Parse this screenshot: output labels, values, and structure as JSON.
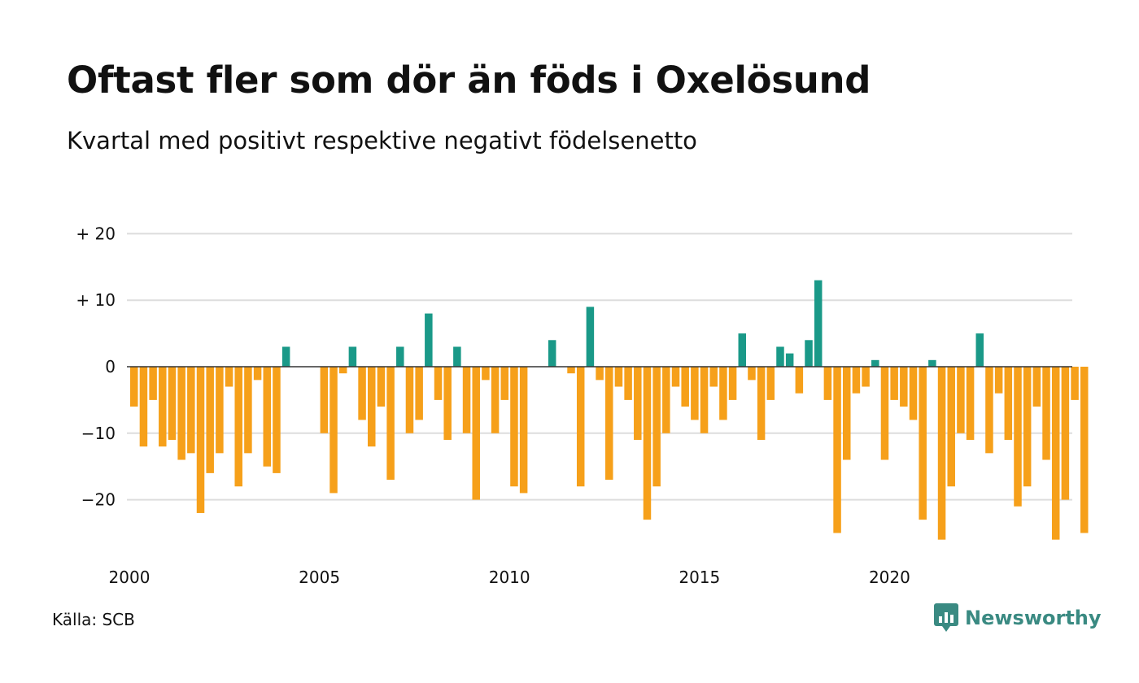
{
  "title": "Oftast fler som dör än föds i Oxelösund",
  "subtitle": "Kvartal med positivt respektive negativt födelsenetto",
  "source": "Källa: SCB",
  "brand": {
    "name": "Newsworthy",
    "icon": "newsworthy-logo-icon"
  },
  "colors": {
    "positive": "#1a9988",
    "negative": "#f6a01a",
    "grid": "#dddddd",
    "zero": "#333333"
  },
  "chart_data": {
    "type": "bar",
    "x_start_year": 2000,
    "periods_per_year": 4,
    "values": [
      -6,
      -12,
      -5,
      -12,
      -11,
      -14,
      -13,
      -22,
      -16,
      -13,
      -3,
      -18,
      -13,
      -2,
      -15,
      -16,
      3,
      0,
      0,
      0,
      -10,
      -19,
      -1,
      3,
      -8,
      -12,
      -6,
      -17,
      3,
      -10,
      -8,
      8,
      -5,
      -11,
      3,
      -10,
      -20,
      -2,
      -10,
      -5,
      -18,
      -19,
      0,
      0,
      4,
      0,
      -1,
      -18,
      9,
      -2,
      -17,
      -3,
      -5,
      -11,
      -23,
      -18,
      -10,
      -3,
      -6,
      -8,
      -10,
      -3,
      -8,
      -5,
      5,
      -2,
      -11,
      -5,
      3,
      2,
      -4,
      4,
      13,
      -5,
      -25,
      -14,
      -4,
      -3,
      1,
      -14,
      -5,
      -6,
      -8,
      -23,
      1,
      -26,
      -18,
      -10,
      -11,
      5,
      -13,
      -4,
      -11,
      -21,
      -18,
      -6,
      -14,
      -26,
      -20,
      -5,
      -25
    ],
    "ylim": [
      -27,
      20
    ],
    "yticks": [
      {
        "value": 20,
        "label": "+ 20"
      },
      {
        "value": 10,
        "label": "+ 10"
      },
      {
        "value": 0,
        "label": "0"
      },
      {
        "value": -10,
        "label": "−10"
      },
      {
        "value": -20,
        "label": "−20"
      }
    ],
    "xticks": [
      {
        "year": 2000,
        "label": "2000"
      },
      {
        "year": 2005,
        "label": "2005"
      },
      {
        "year": 2010,
        "label": "2010"
      },
      {
        "year": 2015,
        "label": "2015"
      },
      {
        "year": 2020,
        "label": "2020"
      }
    ],
    "grid": true,
    "legend": "none"
  }
}
